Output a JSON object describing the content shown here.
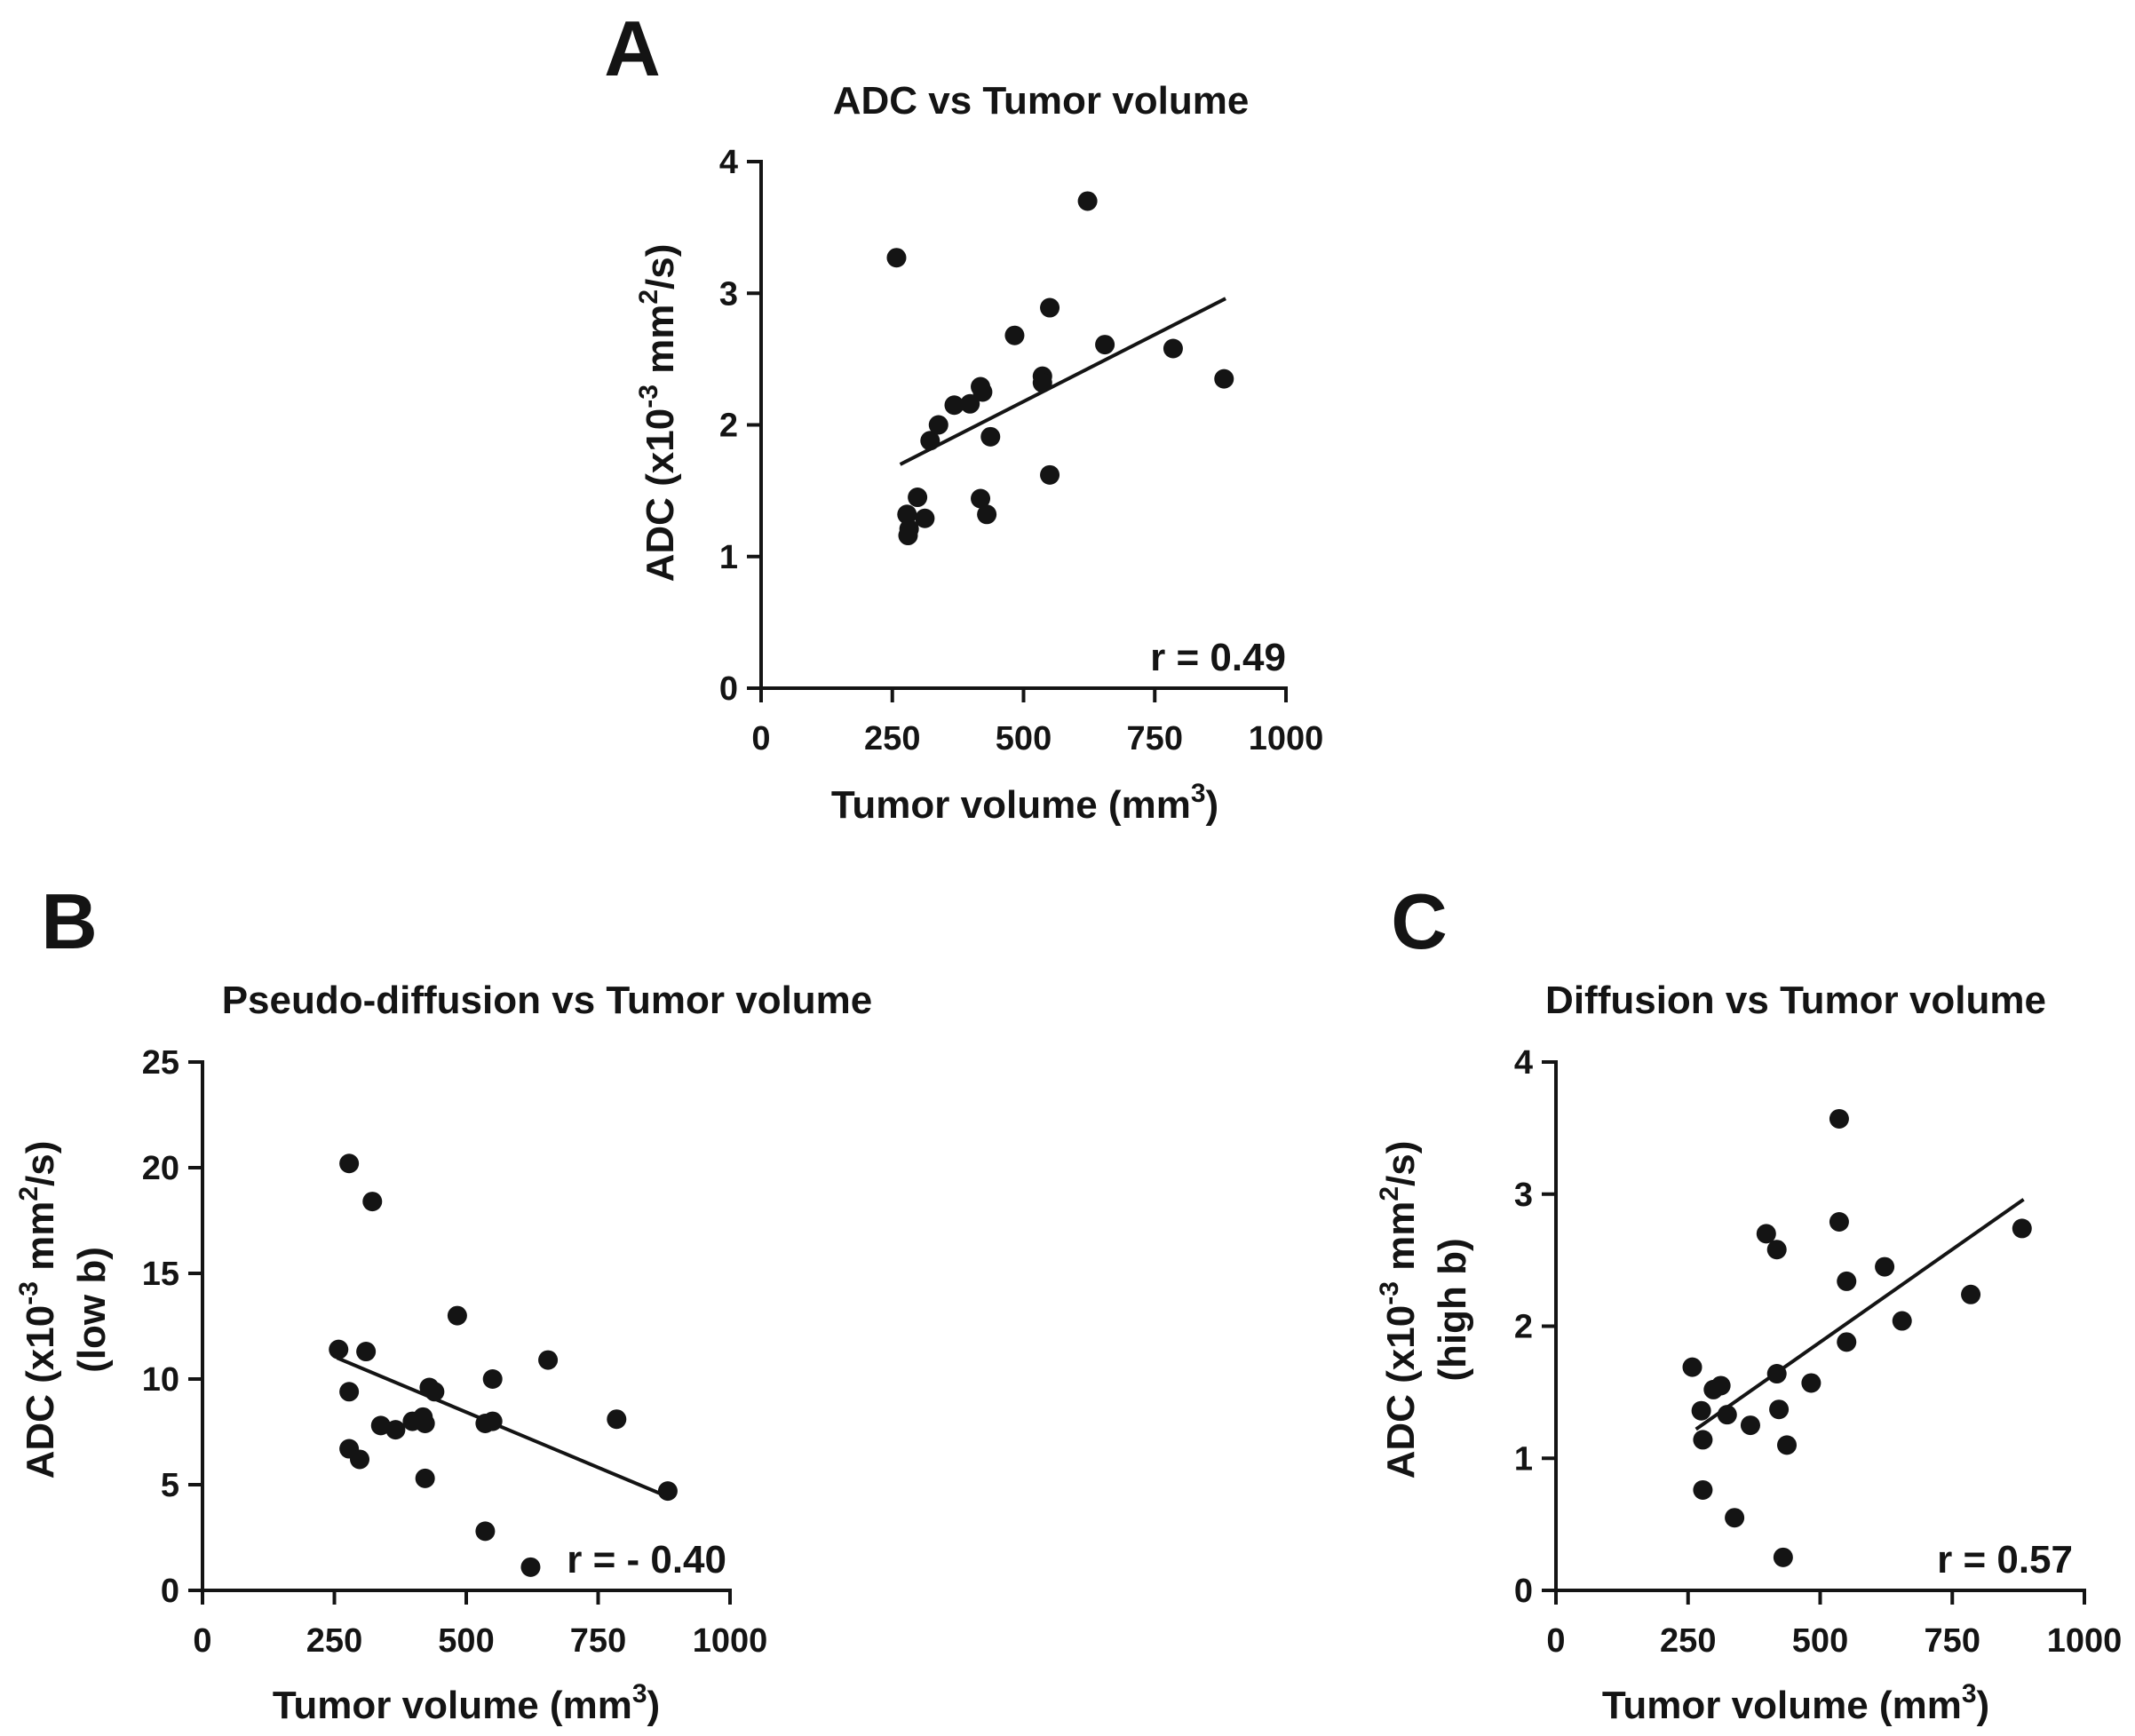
{
  "chart_data": [
    {
      "panel_label": "A",
      "type": "scatter",
      "title": "ADC vs Tumor volume",
      "xlabel": {
        "main": "Tumor volume (mm",
        "sup": "3",
        "end": ")"
      },
      "ylabel": {
        "pre": "ADC (x10",
        "sup1": "-3",
        "mid": " mm",
        "sup2": "2",
        "post": "/s)",
        "line2": ""
      },
      "xlim": [
        0,
        1000
      ],
      "ylim": [
        0,
        4
      ],
      "xticks": [
        0,
        250,
        500,
        750,
        1000
      ],
      "yticks": [
        0,
        1,
        2,
        3,
        4
      ],
      "annotation": "r = 0.49",
      "trendline": {
        "x": [
          265,
          885
        ],
        "y": [
          1.7,
          2.96
        ]
      },
      "points": [
        {
          "x": 258,
          "y": 3.27
        },
        {
          "x": 278,
          "y": 1.32
        },
        {
          "x": 282,
          "y": 1.21
        },
        {
          "x": 280,
          "y": 1.16
        },
        {
          "x": 298,
          "y": 1.45
        },
        {
          "x": 312,
          "y": 1.29
        },
        {
          "x": 322,
          "y": 1.88
        },
        {
          "x": 338,
          "y": 2.0
        },
        {
          "x": 368,
          "y": 2.15
        },
        {
          "x": 398,
          "y": 2.16
        },
        {
          "x": 418,
          "y": 2.29
        },
        {
          "x": 422,
          "y": 2.25
        },
        {
          "x": 418,
          "y": 1.44
        },
        {
          "x": 430,
          "y": 1.32
        },
        {
          "x": 437,
          "y": 1.91
        },
        {
          "x": 483,
          "y": 2.68
        },
        {
          "x": 536,
          "y": 2.37
        },
        {
          "x": 536,
          "y": 2.32
        },
        {
          "x": 550,
          "y": 2.89
        },
        {
          "x": 550,
          "y": 1.62
        },
        {
          "x": 622,
          "y": 3.7
        },
        {
          "x": 655,
          "y": 2.61
        },
        {
          "x": 785,
          "y": 2.58
        },
        {
          "x": 882,
          "y": 2.35
        }
      ]
    },
    {
      "panel_label": "B",
      "type": "scatter",
      "title": "Pseudo-diffusion vs Tumor volume",
      "xlabel": {
        "main": "Tumor volume (mm",
        "sup": "3",
        "end": ")"
      },
      "ylabel": {
        "pre": "ADC (x10",
        "sup1": "-3",
        "mid": " mm",
        "sup2": "2",
        "post": "/s)",
        "line2": "(low b)"
      },
      "xlim": [
        0,
        1000
      ],
      "ylim": [
        0,
        25
      ],
      "xticks": [
        0,
        250,
        500,
        750,
        1000
      ],
      "yticks": [
        0,
        5,
        10,
        15,
        20,
        25
      ],
      "annotation": "r = - 0.40",
      "trendline": {
        "x": [
          255,
          885
        ],
        "y": [
          11.0,
          4.4
        ]
      },
      "points": [
        {
          "x": 258,
          "y": 11.4
        },
        {
          "x": 278,
          "y": 20.2
        },
        {
          "x": 278,
          "y": 9.4
        },
        {
          "x": 278,
          "y": 6.7
        },
        {
          "x": 298,
          "y": 6.2
        },
        {
          "x": 310,
          "y": 11.3
        },
        {
          "x": 322,
          "y": 18.4
        },
        {
          "x": 338,
          "y": 7.8
        },
        {
          "x": 366,
          "y": 7.6
        },
        {
          "x": 398,
          "y": 8.0
        },
        {
          "x": 418,
          "y": 8.2
        },
        {
          "x": 422,
          "y": 7.9
        },
        {
          "x": 422,
          "y": 5.3
        },
        {
          "x": 430,
          "y": 9.6
        },
        {
          "x": 440,
          "y": 9.4
        },
        {
          "x": 483,
          "y": 13.0
        },
        {
          "x": 536,
          "y": 7.9
        },
        {
          "x": 536,
          "y": 2.8
        },
        {
          "x": 550,
          "y": 10.0
        },
        {
          "x": 550,
          "y": 8.0
        },
        {
          "x": 622,
          "y": 1.1
        },
        {
          "x": 655,
          "y": 10.9
        },
        {
          "x": 785,
          "y": 8.1
        },
        {
          "x": 882,
          "y": 4.7
        }
      ]
    },
    {
      "panel_label": "C",
      "type": "scatter",
      "title": "Diffusion vs Tumor volume",
      "xlabel": {
        "main": "Tumor volume (mm",
        "sup": "3",
        "end": ")"
      },
      "ylabel": {
        "pre": "ADC (x10",
        "sup1": "-3",
        "mid": " mm",
        "sup2": "2",
        "post": "/s)",
        "line2": "(high b)"
      },
      "xlim": [
        0,
        1000
      ],
      "ylim": [
        0,
        4
      ],
      "xticks": [
        0,
        250,
        500,
        750,
        1000
      ],
      "yticks": [
        0,
        1,
        2,
        3,
        4
      ],
      "annotation": "r = 0.57",
      "trendline": {
        "x": [
          265,
          885
        ],
        "y": [
          1.22,
          2.96
        ]
      },
      "points": [
        {
          "x": 258,
          "y": 1.69
        },
        {
          "x": 275,
          "y": 1.36
        },
        {
          "x": 278,
          "y": 1.14
        },
        {
          "x": 278,
          "y": 0.76
        },
        {
          "x": 298,
          "y": 1.52
        },
        {
          "x": 312,
          "y": 1.55
        },
        {
          "x": 324,
          "y": 1.33
        },
        {
          "x": 338,
          "y": 0.55
        },
        {
          "x": 368,
          "y": 1.25
        },
        {
          "x": 398,
          "y": 2.7
        },
        {
          "x": 418,
          "y": 2.58
        },
        {
          "x": 418,
          "y": 1.64
        },
        {
          "x": 422,
          "y": 1.37
        },
        {
          "x": 430,
          "y": 0.25
        },
        {
          "x": 437,
          "y": 1.1
        },
        {
          "x": 483,
          "y": 1.57
        },
        {
          "x": 536,
          "y": 3.57
        },
        {
          "x": 536,
          "y": 2.79
        },
        {
          "x": 550,
          "y": 2.34
        },
        {
          "x": 550,
          "y": 1.88
        },
        {
          "x": 622,
          "y": 2.45
        },
        {
          "x": 655,
          "y": 2.04
        },
        {
          "x": 785,
          "y": 2.24
        },
        {
          "x": 882,
          "y": 2.74
        }
      ]
    }
  ]
}
